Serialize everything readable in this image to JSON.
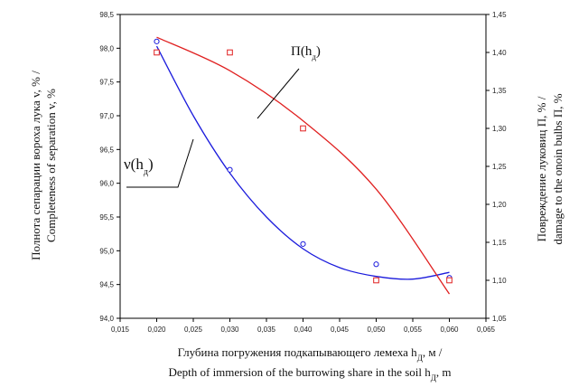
{
  "chart_data": {
    "type": "scatter",
    "x": [
      0.02,
      0.03,
      0.04,
      0.05,
      0.06
    ],
    "xlim": [
      0.015,
      0.065
    ],
    "xticks": [
      "0,015",
      "0,020",
      "0,025",
      "0,030",
      "0,035",
      "0,040",
      "0,045",
      "0,050",
      "0,055",
      "0,060",
      "0,065"
    ],
    "xlabel_line1": "Глубина погружения подкапывающего лемеха h",
    "xlabel_line1_sub": "Д",
    "xlabel_line1_end": ", м /",
    "xlabel_line2": "Depth of immersion of the burrowing share in the soil h",
    "xlabel_line2_sub": "Д",
    "xlabel_line2_end": ", m",
    "y_left": {
      "lim": [
        94.0,
        98.5
      ],
      "ticks": [
        "94,0",
        "94,5",
        "95,0",
        "95,5",
        "96,0",
        "96,5",
        "97,0",
        "97,5",
        "98,0",
        "98,5"
      ],
      "label_line1": "Полнота сепарации вороха лука v, % /",
      "label_line2": "Completeness of separation  v, %"
    },
    "y_right": {
      "lim": [
        1.05,
        1.45
      ],
      "ticks": [
        "1,05",
        "1,10",
        "1,15",
        "1,20",
        "1,25",
        "1,30",
        "1,35",
        "1,40",
        "1,45"
      ],
      "label_line1": "Повреждение луковиц П, % /",
      "label_line2": "damage to the onoin bulbs П, %"
    },
    "series": [
      {
        "name": "ν(h",
        "name_sub": "д",
        "name_end": ")",
        "axis": "left",
        "color": "#1a1adc",
        "marker": "circle",
        "points": [
          98.1,
          96.2,
          95.1,
          94.8,
          94.6
        ],
        "fit": [
          0.02,
          98.03,
          0.025,
          97.0,
          0.03,
          96.15,
          0.035,
          95.5,
          0.04,
          95.03,
          0.045,
          94.75,
          0.05,
          94.62,
          0.055,
          94.58,
          0.06,
          94.68
        ]
      },
      {
        "name": "П(h",
        "name_sub": "д",
        "name_end": ")",
        "axis": "right",
        "color": "#e02020",
        "marker": "square",
        "points": [
          1.4,
          1.4,
          1.3,
          1.1,
          1.1
        ],
        "fit": [
          0.02,
          1.42,
          0.03,
          1.376,
          0.04,
          1.31,
          0.05,
          1.22,
          0.06,
          1.082
        ]
      }
    ],
    "grid": false
  }
}
